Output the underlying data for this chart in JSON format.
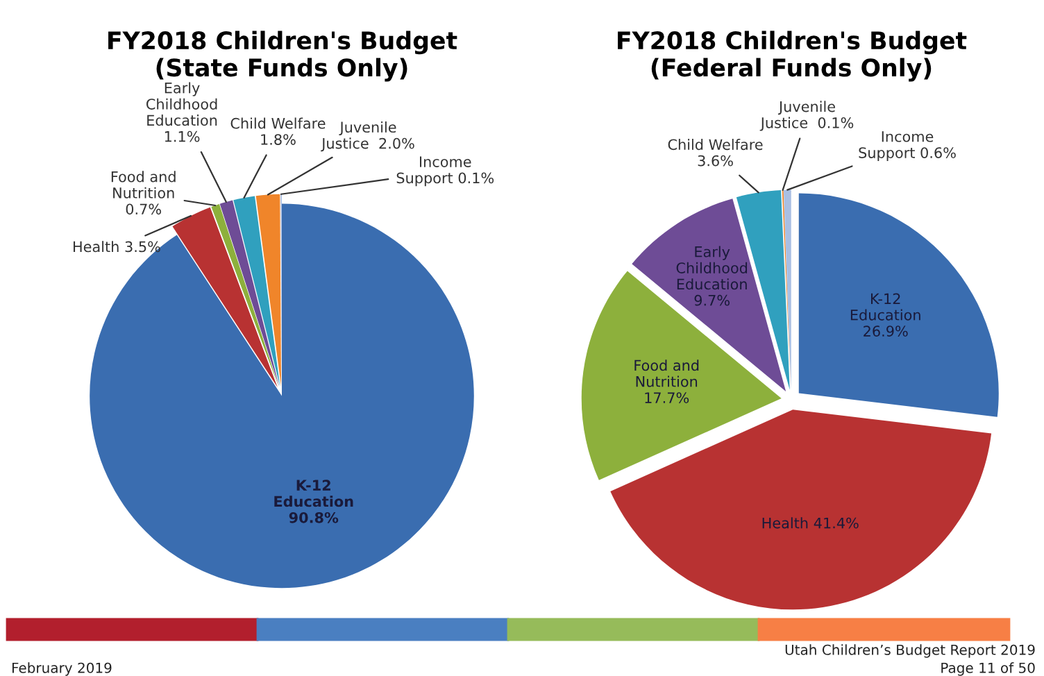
{
  "chart_data": [
    {
      "type": "pie",
      "title": "FY2018 Children's Budget\n(State Funds Only)",
      "categories": [
        "K-12\nEducation\n",
        "Health",
        "Food and\nNutrition\n",
        "Early\nChildhood\nEducation\n",
        "Child Welfare\n",
        "Juvenile\nJustice ",
        "Income\nSupport"
      ],
      "values": [
        90.8,
        3.5,
        0.7,
        1.1,
        1.8,
        2.0,
        0.1
      ],
      "value_labels": [
        "90.8%",
        "3.5%",
        "0.7%",
        "1.1%",
        "1.8%",
        "2.0%",
        "0.1%"
      ],
      "colors": [
        "#3a6db0",
        "#b83232",
        "#8db03c",
        "#6e4c96",
        "#30a0be",
        "#f0852a",
        "#a9bfe3"
      ],
      "data_labels": true,
      "legend": false
    },
    {
      "type": "pie",
      "title": "FY2018 Children's Budget\n(Federal Funds Only)",
      "categories": [
        "K-12\nEducation\n",
        "Health",
        "Food and\nNutrition\n",
        "Early\nChildhood\nEducation\n",
        "Child Welfare\n",
        "Juvenile\nJustice ",
        "Income\nSupport"
      ],
      "values": [
        26.9,
        41.4,
        17.7,
        9.7,
        3.6,
        0.1,
        0.6
      ],
      "value_labels": [
        "26.9%",
        "41.4%",
        "17.7%",
        "9.7%",
        "3.6%",
        "0.1%",
        "0.6%"
      ],
      "colors": [
        "#3a6db0",
        "#b83232",
        "#8db03c",
        "#6e4c96",
        "#30a0be",
        "#f0852a",
        "#a9bfe3"
      ],
      "data_labels": true,
      "legend": false,
      "annotations": [
        "February 2019",
        "Utah Children’s Budget Report 2019",
        "Page 11 of 50"
      ]
    }
  ]
}
